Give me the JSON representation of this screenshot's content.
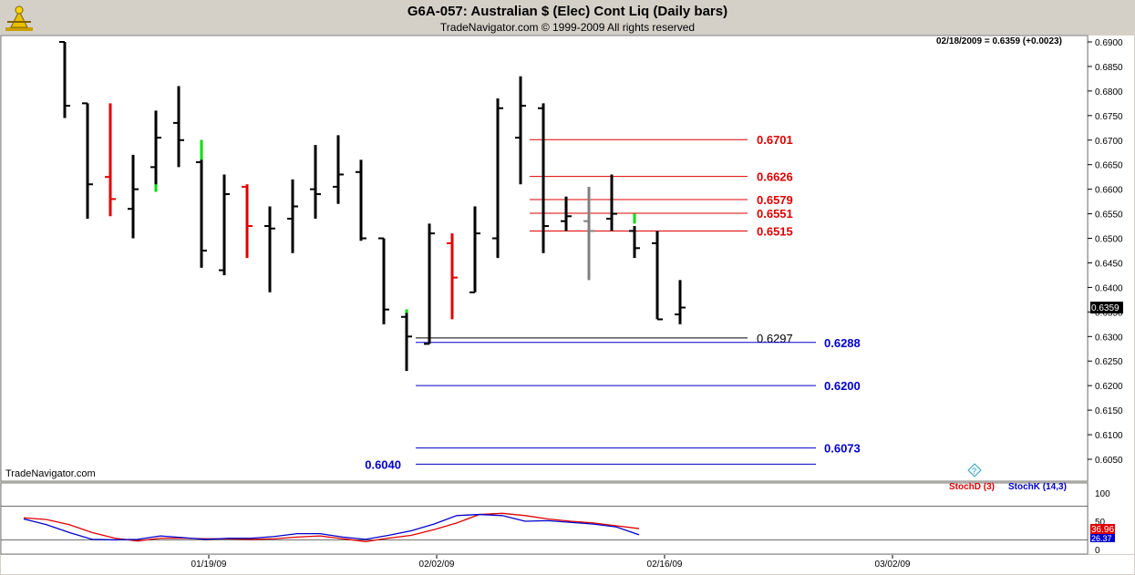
{
  "header": {
    "title": "G6A-057:  Australian $ (Elec) Cont Liq  (Daily bars)",
    "subtitle": "TradeNavigator.com © 1999-2009 All rights reserved"
  },
  "watermark": "TradeNavigator.com",
  "last_quote": "02/18/2009 = 0.6359 (+0.0023)",
  "last_price_tag": "0.6359",
  "indicator_legend": {
    "stoch_d": "StochD (3)",
    "stoch_k": "StochK (14,3)"
  },
  "indicator_values": {
    "stoch_d": "36.96",
    "stoch_k": "26.37"
  },
  "colors": {
    "up_bar": "#e00000",
    "down_bar": "#000000",
    "signal": "#00e000",
    "red_level": "#e00000",
    "blue_level": "#0000cc",
    "stochD": "#e00000",
    "stochK": "#0000cc"
  },
  "chart_data": {
    "type": "bar",
    "title": "G6A-057:  Australian $ (Elec) Cont Liq  (Daily bars)",
    "ylim": [
      0.6,
      0.69
    ],
    "y_ticks": [
      "0.6900",
      "0.6850",
      "0.6800",
      "0.6750",
      "0.6700",
      "0.6650",
      "0.6600",
      "0.6550",
      "0.6500",
      "0.6450",
      "0.6400",
      "0.6350",
      "0.6300",
      "0.6250",
      "0.6200",
      "0.6150",
      "0.6100",
      "0.6050"
    ],
    "x_ticks": [
      {
        "label": "01/19/09",
        "bar": 5
      },
      {
        "label": "02/02/09",
        "bar": 15
      },
      {
        "label": "02/16/09",
        "bar": 25
      },
      {
        "label": "03/02/09",
        "bar": 35
      }
    ],
    "bars": [
      {
        "o": 0.69,
        "h": 0.69,
        "l": 0.6745,
        "c": 0.677,
        "color": "black"
      },
      {
        "o": 0.6775,
        "h": 0.6775,
        "l": 0.654,
        "c": 0.661,
        "color": "black"
      },
      {
        "o": 0.6625,
        "h": 0.6775,
        "l": 0.6545,
        "c": 0.658,
        "color": "red"
      },
      {
        "o": 0.656,
        "h": 0.667,
        "l": 0.65,
        "c": 0.66,
        "color": "black"
      },
      {
        "o": 0.6645,
        "h": 0.676,
        "l": 0.6595,
        "c": 0.6705,
        "color": "black"
      },
      {
        "o": 0.6735,
        "h": 0.681,
        "l": 0.6645,
        "c": 0.67,
        "color": "black"
      },
      {
        "o": 0.6655,
        "h": 0.67,
        "l": 0.644,
        "c": 0.6475,
        "color": "black"
      },
      {
        "o": 0.6435,
        "h": 0.663,
        "l": 0.6425,
        "c": 0.659,
        "color": "black"
      },
      {
        "o": 0.6605,
        "h": 0.661,
        "l": 0.646,
        "c": 0.6525,
        "color": "red"
      },
      {
        "o": 0.6525,
        "h": 0.6565,
        "l": 0.639,
        "c": 0.652,
        "color": "black"
      },
      {
        "o": 0.654,
        "h": 0.662,
        "l": 0.647,
        "c": 0.6565,
        "color": "black"
      },
      {
        "o": 0.66,
        "h": 0.669,
        "l": 0.654,
        "c": 0.659,
        "color": "black"
      },
      {
        "o": 0.6605,
        "h": 0.671,
        "l": 0.657,
        "c": 0.663,
        "color": "black"
      },
      {
        "o": 0.6635,
        "h": 0.666,
        "l": 0.6495,
        "c": 0.65,
        "color": "black"
      },
      {
        "o": 0.65,
        "h": 0.65,
        "l": 0.6325,
        "c": 0.6355,
        "color": "black"
      },
      {
        "o": 0.634,
        "h": 0.6355,
        "l": 0.623,
        "c": 0.63,
        "color": "black"
      },
      {
        "o": 0.6285,
        "h": 0.653,
        "l": 0.6285,
        "c": 0.651,
        "color": "black"
      },
      {
        "o": 0.649,
        "h": 0.651,
        "l": 0.6335,
        "c": 0.642,
        "color": "red"
      },
      {
        "o": 0.639,
        "h": 0.6565,
        "l": 0.639,
        "c": 0.651,
        "color": "black"
      },
      {
        "o": 0.65,
        "h": 0.6785,
        "l": 0.646,
        "c": 0.6765,
        "color": "black"
      },
      {
        "o": 0.6705,
        "h": 0.683,
        "l": 0.661,
        "c": 0.677,
        "color": "black"
      },
      {
        "o": 0.6765,
        "h": 0.6775,
        "l": 0.647,
        "c": 0.6525,
        "color": "black"
      },
      {
        "o": 0.6535,
        "h": 0.6585,
        "l": 0.6515,
        "c": 0.6545,
        "color": "black"
      },
      {
        "o": 0.6535,
        "h": 0.6605,
        "l": 0.6415,
        "c": 0.6515,
        "color": "gray"
      },
      {
        "o": 0.654,
        "h": 0.663,
        "l": 0.6515,
        "c": 0.655,
        "color": "black"
      },
      {
        "o": 0.6515,
        "h": 0.6525,
        "l": 0.646,
        "c": 0.648,
        "color": "black"
      },
      {
        "o": 0.649,
        "h": 0.6515,
        "l": 0.6335,
        "c": 0.6335,
        "color": "black"
      },
      {
        "o": 0.6345,
        "h": 0.6415,
        "l": 0.6325,
        "c": 0.6359,
        "color": "black"
      }
    ],
    "signals": [
      {
        "bar": 4,
        "top": 0.661,
        "bottom": 0.6595
      },
      {
        "bar": 6,
        "top": 0.67,
        "bottom": 0.666
      },
      {
        "bar": 15,
        "top": 0.6355,
        "bottom": 0.6348
      },
      {
        "bar": 25,
        "top": 0.655,
        "bottom": 0.653
      }
    ],
    "levels": [
      {
        "value": 0.6701,
        "label": "0.6701",
        "color": "red",
        "from_bar": 20.5,
        "label_side": "right"
      },
      {
        "value": 0.6626,
        "label": "0.6626",
        "color": "red",
        "from_bar": 20.5,
        "label_side": "right"
      },
      {
        "value": 0.6579,
        "label": "0.6579",
        "color": "red",
        "from_bar": 20.5,
        "label_side": "right"
      },
      {
        "value": 0.6551,
        "label": "0.6551",
        "color": "red",
        "from_bar": 20.5,
        "label_side": "right"
      },
      {
        "value": 0.6515,
        "label": "0.6515",
        "color": "red",
        "from_bar": 20.5,
        "label_side": "right"
      },
      {
        "value": 0.6297,
        "label": "0.6297",
        "color": "black",
        "from_bar": 15.5,
        "label_side": "right"
      },
      {
        "value": 0.6288,
        "label": "0.6288",
        "color": "blue",
        "from_bar": 15.5,
        "label_side": "far"
      },
      {
        "value": 0.62,
        "label": "0.6200",
        "color": "blue",
        "from_bar": 15.5,
        "label_side": "far"
      },
      {
        "value": 0.6073,
        "label": "0.6073",
        "color": "blue",
        "from_bar": 15.5,
        "label_side": "far"
      },
      {
        "value": 0.604,
        "label": "0.6040",
        "color": "blue",
        "from_bar": 15.5,
        "label_side": "left"
      }
    ],
    "stochastic": {
      "ylim": [
        0,
        100
      ],
      "y_ticks": [
        "100",
        "50",
        "0"
      ],
      "levels": [
        80,
        20
      ],
      "stochD": [
        56,
        53,
        44,
        30,
        20,
        15,
        20,
        20,
        19,
        19,
        18,
        19,
        22,
        24,
        19,
        14,
        20,
        25,
        35,
        47,
        62,
        64,
        60,
        54,
        50,
        47,
        42,
        37
      ],
      "stochK": [
        54,
        44,
        30,
        18,
        17,
        18,
        24,
        21,
        18,
        20,
        20,
        23,
        28,
        28,
        22,
        18,
        25,
        33,
        45,
        60,
        62,
        60,
        50,
        51,
        48,
        45,
        40,
        26
      ]
    }
  }
}
